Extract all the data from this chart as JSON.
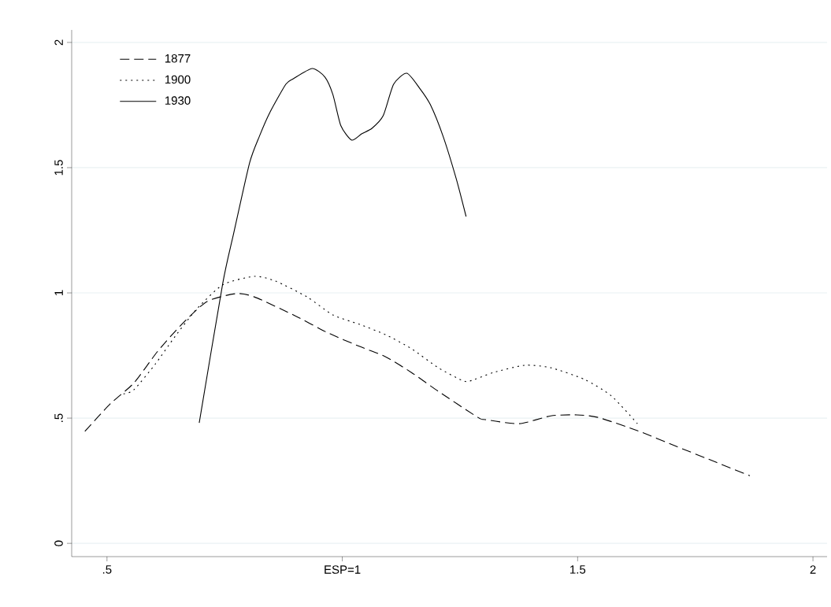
{
  "chart_data": {
    "type": "line",
    "xlim": [
      0.425,
      2.03
    ],
    "ylim": [
      -0.053,
      2.05
    ],
    "xticks": [
      {
        "value": 0.5,
        "label": ".5"
      },
      {
        "value": 1,
        "label": "ESP=1"
      },
      1.5,
      2
    ],
    "yticks": [
      0,
      {
        "value": 0.5,
        "label": ".5"
      },
      1,
      1.5,
      2
    ],
    "grid": "y",
    "legend": "top left",
    "marker": "none",
    "series": [
      {
        "name": "1877",
        "color": "#000000",
        "line_style": "dashed",
        "x": [
          0.453,
          0.507,
          0.557,
          0.607,
          0.657,
          0.712,
          0.774,
          0.813,
          0.896,
          0.97,
          1.037,
          1.092,
          1.147,
          1.204,
          1.288,
          1.304,
          1.376,
          1.443,
          1.498,
          1.543,
          1.627,
          1.71,
          1.794,
          1.866
        ],
        "values": [
          0.447,
          0.557,
          0.64,
          0.765,
          0.871,
          0.965,
          0.997,
          0.984,
          0.912,
          0.84,
          0.786,
          0.745,
          0.682,
          0.607,
          0.503,
          0.494,
          0.478,
          0.509,
          0.513,
          0.503,
          0.45,
          0.387,
          0.324,
          0.27
        ]
      },
      {
        "name": "1900",
        "color": "#000000",
        "line_style": "dotted",
        "x": [
          0.535,
          0.557,
          0.602,
          0.645,
          0.69,
          0.746,
          0.813,
          0.858,
          0.925,
          0.98,
          1.037,
          1.092,
          1.147,
          1.204,
          1.254,
          1.271,
          1.321,
          1.388,
          1.443,
          1.515,
          1.572,
          1.627
        ],
        "values": [
          0.597,
          0.613,
          0.714,
          0.827,
          0.934,
          1.032,
          1.066,
          1.047,
          0.984,
          0.912,
          0.874,
          0.833,
          0.777,
          0.701,
          0.651,
          0.648,
          0.682,
          0.711,
          0.701,
          0.654,
          0.588,
          0.478
        ]
      },
      {
        "name": "1930",
        "color": "#000000",
        "line_style": "solid",
        "x": [
          0.696,
          0.746,
          0.769,
          0.803,
          0.824,
          0.846,
          0.88,
          0.896,
          0.936,
          0.963,
          0.98,
          0.997,
          1.02,
          1.041,
          1.063,
          1.087,
          1.109,
          1.137,
          1.164,
          1.187,
          1.214,
          1.242,
          1.263
        ],
        "values": [
          0.481,
          1.038,
          1.236,
          1.519,
          1.626,
          1.72,
          1.833,
          1.855,
          1.896,
          1.862,
          1.792,
          1.667,
          1.61,
          1.635,
          1.657,
          1.708,
          1.833,
          1.877,
          1.818,
          1.752,
          1.626,
          1.456,
          1.305
        ]
      }
    ]
  }
}
